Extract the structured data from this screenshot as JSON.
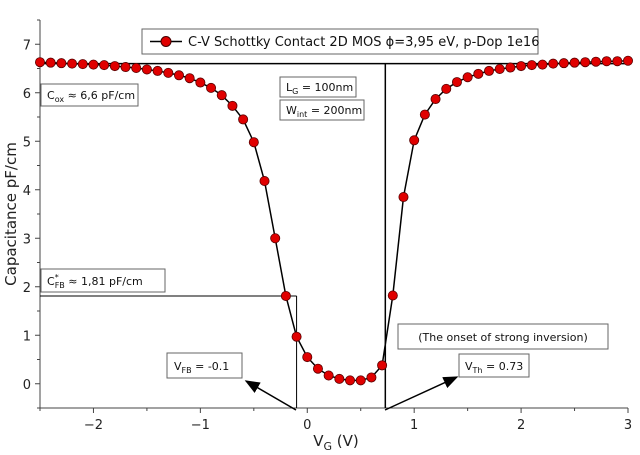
{
  "chart_data": {
    "type": "line",
    "xlabel": "V",
    "xlabel_sub": "G",
    "xlabel_unit": " (V)",
    "ylabel": "Capacitance pF/cm",
    "xlim": [
      -2.5,
      3.0
    ],
    "ylim": [
      -0.5,
      7.5
    ],
    "xticks": [
      -2,
      -1,
      0,
      1,
      2,
      3
    ],
    "yticks": [
      0,
      1,
      2,
      3,
      4,
      5,
      6,
      7
    ],
    "grid": false,
    "legend_position": "top-center",
    "series": [
      {
        "name": "C-V Schottky Contact 2D MOS ϕ=3,95 eV, p-Dop 1e16",
        "color": "#e00000",
        "points": [
          [
            -2.5,
            6.63
          ],
          [
            -2.4,
            6.62
          ],
          [
            -2.3,
            6.61
          ],
          [
            -2.2,
            6.6
          ],
          [
            -2.1,
            6.59
          ],
          [
            -2.0,
            6.58
          ],
          [
            -1.9,
            6.57
          ],
          [
            -1.8,
            6.55
          ],
          [
            -1.7,
            6.53
          ],
          [
            -1.6,
            6.51
          ],
          [
            -1.5,
            6.48
          ],
          [
            -1.4,
            6.45
          ],
          [
            -1.3,
            6.41
          ],
          [
            -1.2,
            6.36
          ],
          [
            -1.1,
            6.3
          ],
          [
            -1.0,
            6.21
          ],
          [
            -0.9,
            6.1
          ],
          [
            -0.8,
            5.95
          ],
          [
            -0.7,
            5.73
          ],
          [
            -0.6,
            5.45
          ],
          [
            -0.5,
            4.98
          ],
          [
            -0.4,
            4.18
          ],
          [
            -0.3,
            3.0
          ],
          [
            -0.2,
            1.81
          ],
          [
            -0.1,
            0.97
          ],
          [
            0.0,
            0.55
          ],
          [
            0.1,
            0.31
          ],
          [
            0.2,
            0.17
          ],
          [
            0.3,
            0.1
          ],
          [
            0.4,
            0.07
          ],
          [
            0.5,
            0.07
          ],
          [
            0.6,
            0.13
          ],
          [
            0.7,
            0.38
          ],
          [
            0.8,
            1.82
          ],
          [
            0.9,
            3.85
          ],
          [
            1.0,
            5.02
          ],
          [
            1.1,
            5.55
          ],
          [
            1.2,
            5.87
          ],
          [
            1.3,
            6.08
          ],
          [
            1.4,
            6.22
          ],
          [
            1.5,
            6.32
          ],
          [
            1.6,
            6.39
          ],
          [
            1.7,
            6.45
          ],
          [
            1.8,
            6.49
          ],
          [
            1.9,
            6.52
          ],
          [
            2.0,
            6.55
          ],
          [
            2.1,
            6.57
          ],
          [
            2.2,
            6.58
          ],
          [
            2.3,
            6.6
          ],
          [
            2.4,
            6.61
          ],
          [
            2.5,
            6.62
          ],
          [
            2.6,
            6.63
          ],
          [
            2.7,
            6.64
          ],
          [
            2.8,
            6.65
          ],
          [
            2.9,
            6.65
          ],
          [
            3.0,
            6.66
          ]
        ]
      }
    ],
    "reference_lines": {
      "cox_level": 6.6,
      "cfb_level": 1.81,
      "vfb": -0.1,
      "vth": 0.73
    },
    "annotations": {
      "cox": {
        "main": "C",
        "sub": "ox",
        "rest": " ≈ 6,6 pF/cm"
      },
      "cfb": {
        "main": "C",
        "sup": "*",
        "sub": "FB",
        "rest": " ≈ 1,81 pF/cm"
      },
      "lg": {
        "main": "L",
        "sub": "G",
        "rest": " = 100nm"
      },
      "wint": {
        "main": "W",
        "sub": "int",
        "rest": " = 200nm"
      },
      "vfb": {
        "main": "V",
        "sub": "FB",
        "rest": " = -0.1"
      },
      "vth": {
        "main": "V",
        "sub": "Th",
        "rest": " = 0.73"
      },
      "onset": "(The onset of strong inversion)"
    }
  }
}
